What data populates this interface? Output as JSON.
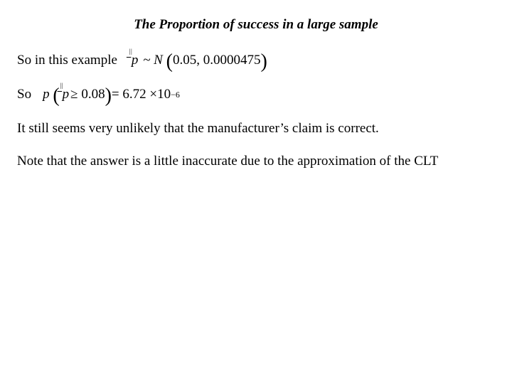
{
  "title": "The Proportion of success in a large sample",
  "line1": {
    "lead": "So in this example",
    "formula": {
      "p_label": "p",
      "dist": "~ N",
      "args": "0.05, 0.0000475"
    }
  },
  "line2": {
    "lead": "So",
    "formula": {
      "p_label": "p",
      "cond": " ≥ 0.08",
      "eq": "= 6.72",
      "times": "×",
      "tenbase": "10",
      "exp": "−6"
    }
  },
  "para1": "It still seems very unlikely that the manufacturer’s claim is correct.",
  "para2": "Note that the answer is a little inaccurate due to the approximation of the CLT"
}
